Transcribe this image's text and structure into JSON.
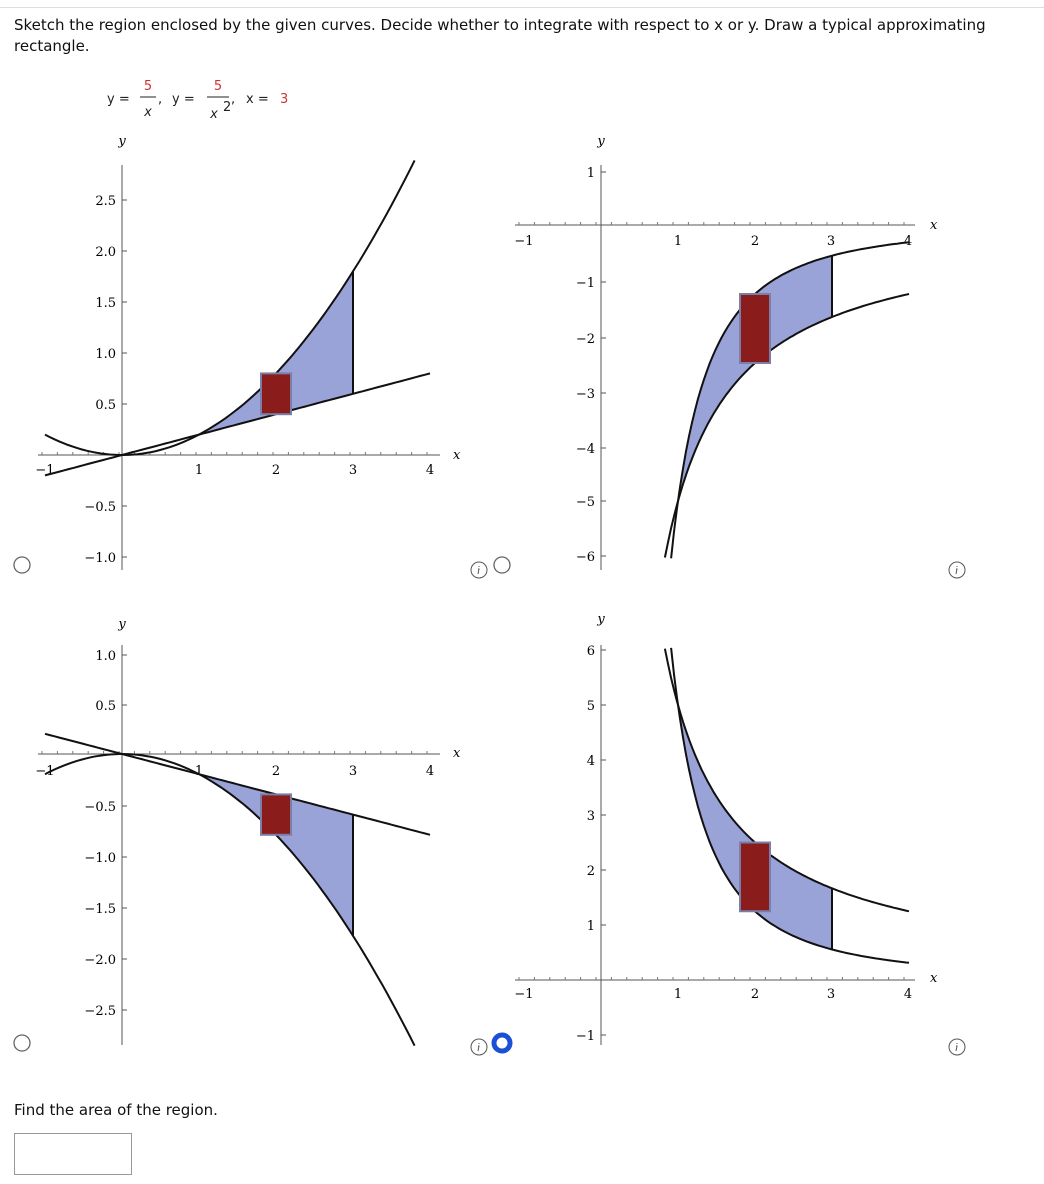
{
  "question": "Sketch the region enclosed by the given curves. Decide whether to integrate with respect to x or y. Draw a typical approximating rectangle.",
  "equation": {
    "eq1_lhs": "y =",
    "eq1_num": "5",
    "eq1_den": "x",
    "eq2_lhs": "y =",
    "eq2_num": "5",
    "eq2_den": "x",
    "eq2_exp": "2",
    "eq3_lhs": "x =",
    "eq3_rhs": "3"
  },
  "options": [
    {
      "x_label": "x",
      "y_label": "y",
      "x_ticks": [
        "−1",
        "1",
        "2",
        "3",
        "4"
      ],
      "y_ticks": [
        "2.5",
        "2.0",
        "1.5",
        "1.0",
        "0.5",
        "−0.5",
        "−1.0"
      ],
      "selected": false
    },
    {
      "x_label": "x",
      "y_label": "y",
      "x_ticks": [
        "−1",
        "1",
        "2",
        "3",
        "4"
      ],
      "y_ticks": [
        "1",
        "−1",
        "−2",
        "−3",
        "−4",
        "−5",
        "−6"
      ],
      "selected": false
    },
    {
      "x_label": "x",
      "y_label": "y",
      "x_ticks": [
        "−1",
        "1",
        "2",
        "3",
        "4"
      ],
      "y_ticks": [
        "1.0",
        "0.5",
        "−0.5",
        "−1.0",
        "−1.5",
        "−2.0",
        "−2.5"
      ],
      "selected": false
    },
    {
      "x_label": "x",
      "y_label": "y",
      "x_ticks": [
        "−1",
        "1",
        "2",
        "3",
        "4"
      ],
      "y_ticks": [
        "6",
        "5",
        "4",
        "3",
        "2",
        "1",
        "−1"
      ],
      "selected": true
    }
  ],
  "prompt": "Find the area of the region."
}
